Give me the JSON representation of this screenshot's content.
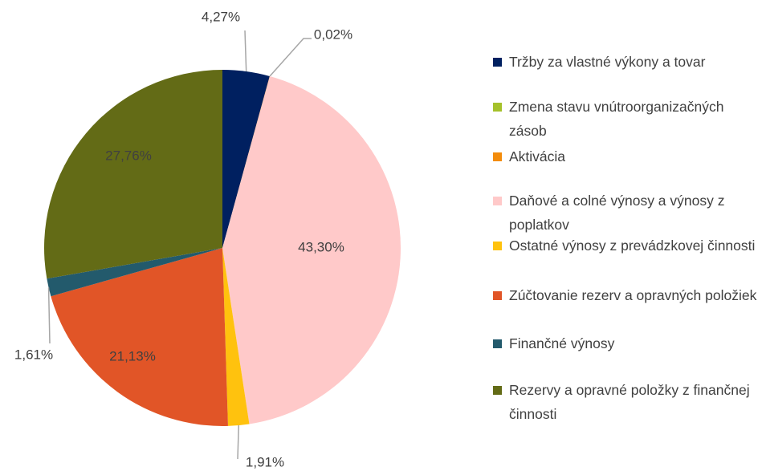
{
  "chart_data": {
    "type": "pie",
    "categories": [
      "Tržby za vlastné výkony a tovar",
      "Zmena stavu vnútroorganizačných zásob",
      "Aktivácia",
      "Daňové a colné výnosy a výnosy z poplatkov",
      "Ostatné výnosy z prevádzkovej činnosti",
      "Zúčtovanie rezerv a opravných položiek",
      "Finančné výnosy",
      "Rezervy a opravné položky z finančnej činnosti"
    ],
    "values": [
      4.27,
      0,
      0.02,
      43.3,
      1.91,
      21.13,
      1.61,
      27.76
    ],
    "value_labels": [
      "4,27%",
      null,
      "0,02%",
      "43,30%",
      "1,91%",
      "21,13%",
      "1,61%",
      "27,76%"
    ],
    "colors": [
      "#002060",
      "#a5c12b",
      "#f38c0c",
      "#ffc9c9",
      "#ffc20e",
      "#e15527",
      "#235a6c",
      "#636b16"
    ],
    "legend": "right"
  }
}
